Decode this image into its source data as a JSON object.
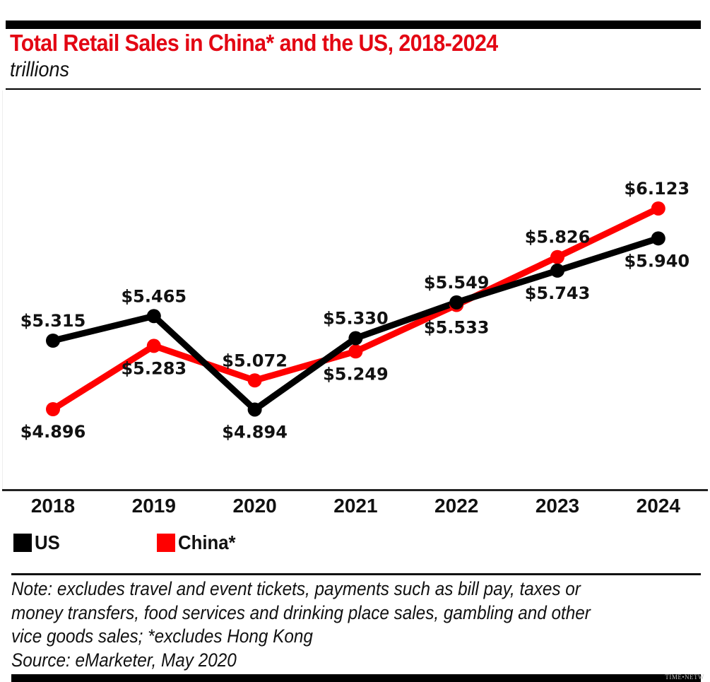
{
  "header": {
    "title": "Total Retail Sales in China* and the US, 2018-2024",
    "subtitle": "trillions"
  },
  "legend": {
    "items": [
      {
        "label": "US",
        "color": "#000000"
      },
      {
        "label": "China*",
        "color": "#ff0000"
      }
    ]
  },
  "footer": {
    "note_lines": [
      "Note: excludes travel and event tickets, payments such as bill pay, taxes or",
      "money transfers, food services and drinking place sales, gambling and other",
      "vice goods sales; *excludes Hong Kong",
      "Source: eMarketer, May 2020"
    ],
    "watermark": "TIME•NETW"
  },
  "chart_data": {
    "type": "line",
    "title": "Total Retail Sales in China* and the US, 2018-2024",
    "subtitle": "trillions",
    "xlabel": "",
    "ylabel": "",
    "categories": [
      "2018",
      "2019",
      "2020",
      "2021",
      "2022",
      "2023",
      "2024"
    ],
    "series": [
      {
        "name": "US",
        "color": "#000000",
        "values": [
          5.315,
          5.465,
          4.894,
          5.33,
          5.549,
          5.743,
          5.94
        ],
        "labels": [
          "$5.315",
          "$5.465",
          "$4.894",
          "$5.330",
          "$5.549",
          "$5.743",
          "$5.940"
        ],
        "label_positions": [
          "above",
          "above",
          "below",
          "above",
          "above",
          "below",
          "below"
        ]
      },
      {
        "name": "China*",
        "color": "#ff0000",
        "values": [
          4.896,
          5.283,
          5.072,
          5.249,
          5.533,
          5.826,
          6.123
        ],
        "labels": [
          "$4.896",
          "$5.283",
          "$5.072",
          "$5.249",
          "$5.533",
          "$5.826",
          "$6.123"
        ],
        "label_positions": [
          "below",
          "below",
          "above",
          "below",
          "below",
          "above",
          "above"
        ]
      }
    ],
    "grid": false,
    "legend_position": "bottom-left",
    "y_axis_visible": false
  }
}
